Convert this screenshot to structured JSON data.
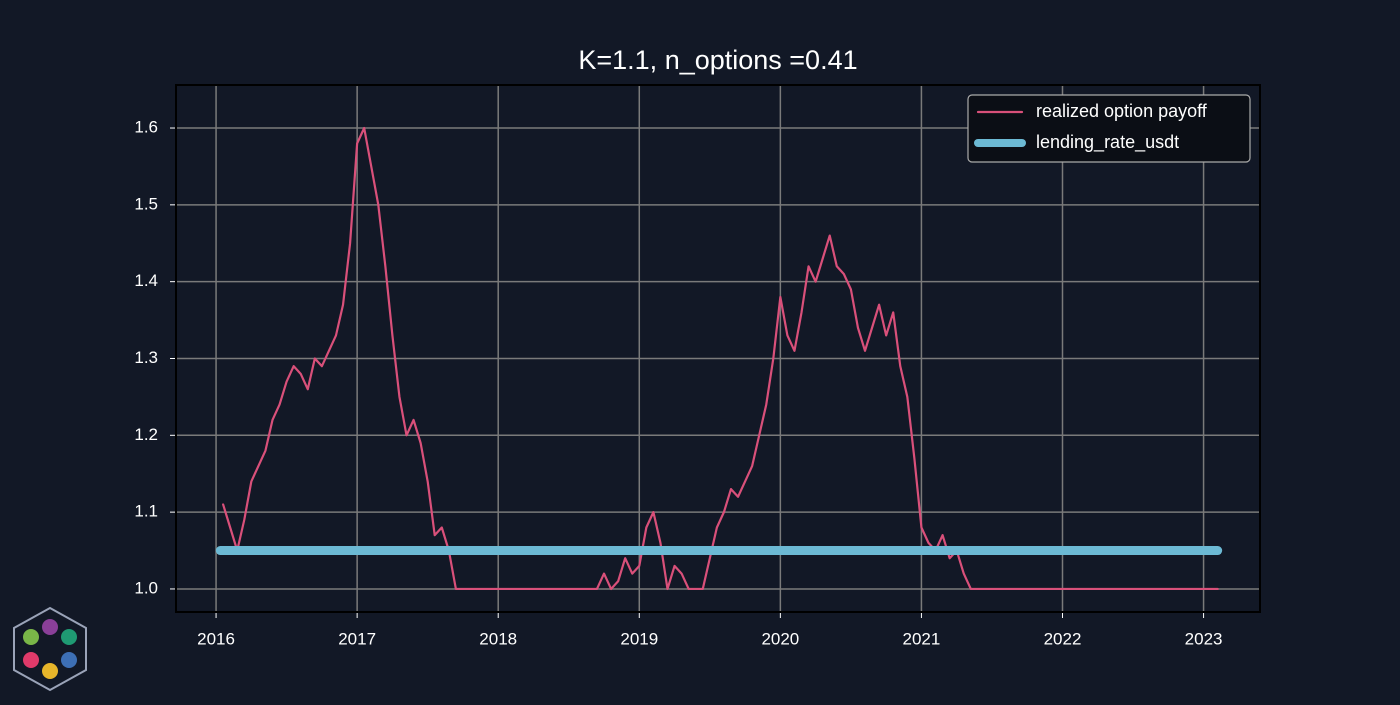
{
  "chart_data": {
    "type": "line",
    "title": "K=1.1, n_options =0.41",
    "xlim": [
      2015.716,
      2023.4
    ],
    "ylim": [
      0.97,
      1.656
    ],
    "xticks": [
      2016,
      2017,
      2018,
      2019,
      2020,
      2021,
      2022,
      2023
    ],
    "yticks": [
      {
        "value": 1.0,
        "label": "1.0"
      },
      1.1,
      1.2,
      1.3,
      1.4,
      1.5,
      1.6
    ],
    "grid": true,
    "legend": "upper right",
    "series": [
      {
        "name": "realized option payoff",
        "color": "#d9507a",
        "x": [
          2016.05,
          2016.1,
          2016.15,
          2016.2,
          2016.25,
          2016.3,
          2016.35,
          2016.4,
          2016.45,
          2016.5,
          2016.55,
          2016.6,
          2016.65,
          2016.7,
          2016.75,
          2016.8,
          2016.85,
          2016.9,
          2016.95,
          2017.0,
          2017.05,
          2017.1,
          2017.15,
          2017.2,
          2017.25,
          2017.3,
          2017.35,
          2017.4,
          2017.45,
          2017.5,
          2017.55,
          2017.6,
          2017.65,
          2017.7,
          2018.7,
          2018.75,
          2018.8,
          2018.85,
          2018.9,
          2018.95,
          2019.0,
          2019.05,
          2019.1,
          2019.15,
          2019.2,
          2019.25,
          2019.3,
          2019.35,
          2019.45,
          2019.5,
          2019.55,
          2019.6,
          2019.65,
          2019.7,
          2019.75,
          2019.8,
          2019.85,
          2019.9,
          2019.95,
          2020.0,
          2020.05,
          2020.1,
          2020.15,
          2020.2,
          2020.25,
          2020.3,
          2020.35,
          2020.4,
          2020.45,
          2020.5,
          2020.55,
          2020.6,
          2020.65,
          2020.7,
          2020.75,
          2020.8,
          2020.85,
          2020.9,
          2020.95,
          2021.0,
          2021.05,
          2021.1,
          2021.15,
          2021.2,
          2021.25,
          2021.3,
          2021.35,
          2023.1
        ],
        "values": [
          1.11,
          1.08,
          1.05,
          1.09,
          1.14,
          1.16,
          1.18,
          1.22,
          1.24,
          1.27,
          1.29,
          1.28,
          1.26,
          1.3,
          1.29,
          1.31,
          1.33,
          1.37,
          1.45,
          1.58,
          1.6,
          1.55,
          1.5,
          1.42,
          1.33,
          1.25,
          1.2,
          1.22,
          1.19,
          1.14,
          1.07,
          1.08,
          1.05,
          1.0,
          1.0,
          1.02,
          1.0,
          1.01,
          1.04,
          1.02,
          1.03,
          1.08,
          1.1,
          1.06,
          1.0,
          1.03,
          1.02,
          1.0,
          1.0,
          1.04,
          1.08,
          1.1,
          1.13,
          1.12,
          1.14,
          1.16,
          1.2,
          1.24,
          1.3,
          1.38,
          1.33,
          1.31,
          1.36,
          1.42,
          1.4,
          1.43,
          1.46,
          1.42,
          1.41,
          1.39,
          1.34,
          1.31,
          1.34,
          1.37,
          1.33,
          1.36,
          1.29,
          1.25,
          1.17,
          1.08,
          1.06,
          1.05,
          1.07,
          1.04,
          1.05,
          1.02,
          1.0,
          1.0
        ]
      },
      {
        "name": "lending_rate_usdt",
        "color": "#6cb9d4",
        "x": [
          2016.03,
          2023.1
        ],
        "values": [
          1.05,
          1.05
        ]
      }
    ]
  }
}
